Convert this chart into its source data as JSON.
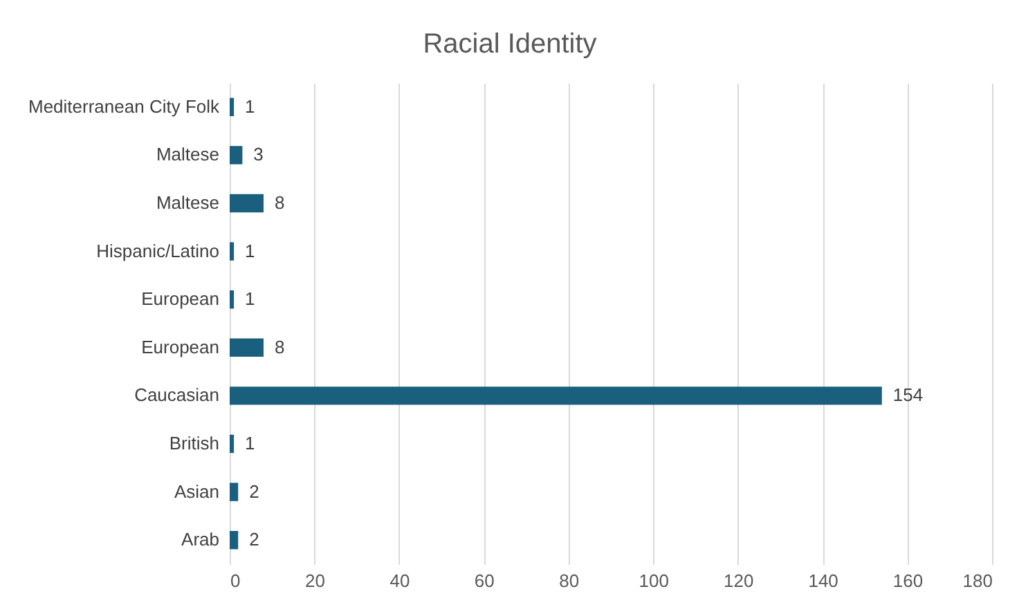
{
  "chart_data": {
    "type": "bar",
    "orientation": "horizontal",
    "title": "Racial Identity",
    "categories": [
      "Mediterranean City Folk",
      "Maltese",
      "Maltese",
      "Hispanic/Latino",
      "European",
      "European",
      "Caucasian",
      "British",
      "Asian",
      "Arab"
    ],
    "values": [
      1,
      3,
      8,
      1,
      1,
      8,
      154,
      1,
      2,
      2
    ],
    "color": "#1b5f7e",
    "xlim": [
      0,
      180
    ],
    "xticks": [
      0,
      20,
      40,
      60,
      80,
      100,
      120,
      140,
      160,
      180
    ],
    "grid": "x",
    "data_labels": true
  }
}
